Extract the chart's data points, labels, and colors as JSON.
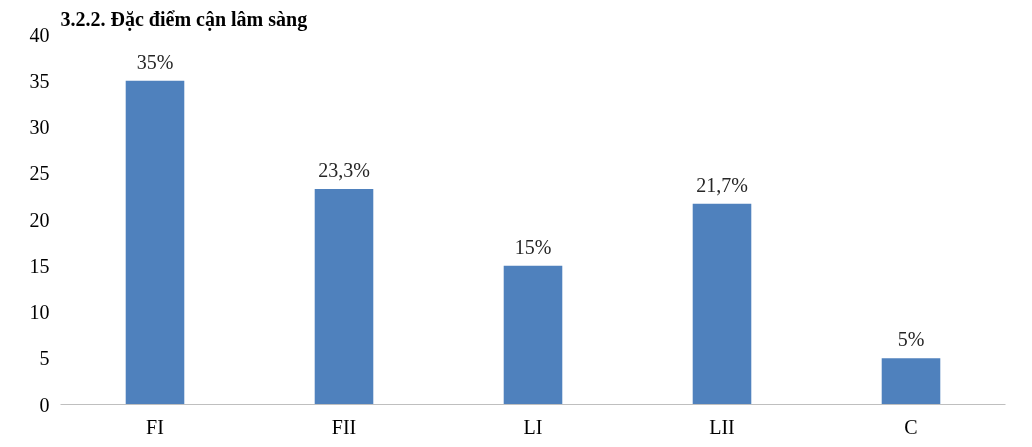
{
  "chart_data": {
    "type": "bar",
    "title": "3.2.2. Đặc điểm cận lâm sàng",
    "categories": [
      "FI",
      "FII",
      "LI",
      "LII",
      "C"
    ],
    "values": [
      35,
      23.3,
      15,
      21.7,
      5
    ],
    "value_labels": [
      "35%",
      "23,3%",
      "15%",
      "21,7%",
      "5%"
    ],
    "color": "#4f81bd",
    "ylim": [
      0,
      40
    ],
    "yticks": [
      0,
      5,
      10,
      15,
      20,
      25,
      30,
      35,
      40
    ],
    "grid": false
  }
}
